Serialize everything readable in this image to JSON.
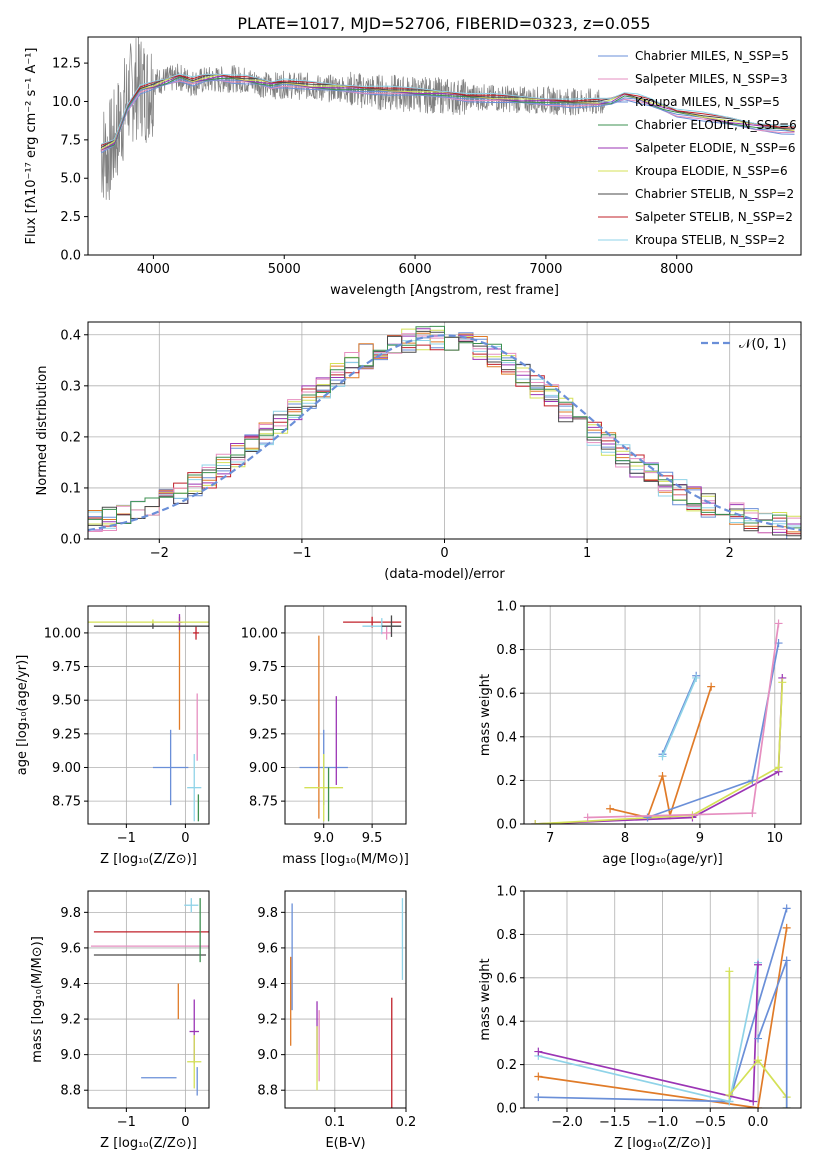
{
  "figure": {
    "title": "PLATE=1017, MJD=52706, FIBERID=0323, z=0.055"
  },
  "colors": {
    "data": "#808080",
    "series": [
      "#6a8fd8",
      "#e68fc0",
      "#6a8fd8",
      "#3c9050",
      "#9b35b5",
      "#d4e157",
      "#4a4a4a",
      "#c0202a",
      "#8fd3e8"
    ],
    "minor": [
      "#6a8fd8",
      "#e07b28",
      "#9b35b5",
      "#d4e157",
      "#c0202a",
      "#8fd3e8",
      "#e68fc0",
      "#4a4a4a",
      "#3c9050"
    ]
  },
  "chart_data": [
    {
      "id": "spectrum",
      "type": "line",
      "title": "PLATE=1017, MJD=52706, FIBERID=0323, z=0.055",
      "xlabel": "wavelength [Angstrom, rest frame]",
      "ylabel": "Flux [fλ10⁻¹⁷ erg cm⁻² s⁻¹ A⁻¹]",
      "xlim": [
        3500,
        8950
      ],
      "ylim": [
        0,
        14.2
      ],
      "xticks": [
        4000,
        5000,
        6000,
        7000,
        8000
      ],
      "xtick_labels": [
        "4000",
        "5000",
        "6000",
        "7000",
        "8000"
      ],
      "yticks": [
        0.0,
        2.5,
        5.0,
        7.5,
        10.0,
        12.5
      ],
      "ytick_labels": [
        "0.0",
        "2.5",
        "5.0",
        "7.5",
        "10.0",
        "12.5"
      ],
      "grid": false,
      "legend_position": "top-right",
      "data_series": {
        "x": [
          3600,
          3650,
          3700,
          3750,
          3800,
          3850,
          3900,
          3950,
          4000,
          4100,
          4200,
          4300,
          4400,
          4500,
          4600,
          4700,
          4800,
          4900,
          5000,
          5100,
          5200,
          5300,
          5400,
          5500,
          5600,
          5700,
          5800,
          5900,
          6000,
          6100,
          6200,
          6300,
          6400,
          6500,
          6600,
          6700,
          6800,
          6900,
          7000,
          7100,
          7200,
          7300,
          7400,
          7450
        ],
        "y": [
          6.8,
          6.5,
          7.4,
          8.8,
          10.2,
          10.8,
          11.2,
          10.6,
          11.3,
          11.4,
          11.6,
          11.2,
          11.4,
          11.4,
          11.5,
          11.4,
          11.2,
          11.0,
          11.1,
          11.0,
          11.0,
          10.8,
          10.9,
          10.8,
          10.7,
          10.6,
          10.6,
          10.5,
          10.5,
          10.4,
          10.4,
          10.3,
          10.3,
          10.3,
          10.2,
          10.2,
          10.1,
          10.1,
          10.1,
          10.0,
          10.0,
          10.0,
          9.9,
          9.9
        ]
      },
      "model_x": [
        3600,
        3700,
        3800,
        3900,
        4000,
        4100,
        4200,
        4300,
        4400,
        4500,
        4600,
        4700,
        4800,
        4900,
        5000,
        5200,
        5400,
        5600,
        5800,
        6000,
        6200,
        6400,
        6600,
        6800,
        7000,
        7200,
        7400,
        7500,
        7600,
        7700,
        7800,
        7900,
        8000,
        8200,
        8400,
        8600,
        8800,
        8900
      ],
      "model_y": [
        6.9,
        7.3,
        9.6,
        10.8,
        11.0,
        11.3,
        11.6,
        11.3,
        11.5,
        11.6,
        11.5,
        11.4,
        11.3,
        11.1,
        11.2,
        11.0,
        10.9,
        10.8,
        10.7,
        10.6,
        10.5,
        10.3,
        10.2,
        10.1,
        10.0,
        9.9,
        9.9,
        10.0,
        10.4,
        10.2,
        9.9,
        9.6,
        9.3,
        9.0,
        8.7,
        8.4,
        8.2,
        8.1
      ],
      "series": [
        {
          "name": "Chabrier MILES, N_SSP=5"
        },
        {
          "name": "Salpeter MILES, N_SSP=3"
        },
        {
          "name": "Kroupa MILES, N_SSP=5"
        },
        {
          "name": "Chabrier ELODIE, N_SSP=6"
        },
        {
          "name": "Salpeter ELODIE, N_SSP=6"
        },
        {
          "name": "Kroupa ELODIE, N_SSP=6"
        },
        {
          "name": "Chabrier STELIB, N_SSP=2"
        },
        {
          "name": "Salpeter STELIB, N_SSP=2"
        },
        {
          "name": "Kroupa STELIB, N_SSP=2"
        }
      ]
    },
    {
      "id": "residuals",
      "type": "line",
      "xlabel": "(data-model)/error",
      "ylabel": "Normed distribution",
      "xlim": [
        -2.5,
        2.5
      ],
      "ylim": [
        0,
        0.425
      ],
      "xticks": [
        -2,
        -1,
        0,
        1,
        2
      ],
      "xtick_labels": [
        "−2",
        "−1",
        "0",
        "1",
        "2"
      ],
      "yticks": [
        0.0,
        0.1,
        0.2,
        0.3,
        0.4
      ],
      "ytick_labels": [
        "0.0",
        "0.1",
        "0.2",
        "0.3",
        "0.4"
      ],
      "grid": true,
      "legend_position": "top-right",
      "legend_label": "𝒩(0, 1)",
      "gaussian": {
        "mean": 0,
        "sigma": 1
      }
    },
    {
      "id": "age-vs-Z",
      "type": "scatter",
      "xlabel": "Z [log₁₀(Z/Z⊙)]",
      "ylabel": "age  [log₁₀(age/yr)]",
      "xlim": [
        -1.65,
        0.4
      ],
      "ylim": [
        8.58,
        10.2
      ],
      "xticks": [
        -1,
        0
      ],
      "xtick_labels": [
        "−1",
        "0"
      ],
      "yticks": [
        8.75,
        9.0,
        9.25,
        9.5,
        9.75,
        10.0
      ],
      "ytick_labels": [
        "8.75",
        "9.00",
        "9.25",
        "9.50",
        "9.75",
        "10.00"
      ],
      "grid": true,
      "points": [
        {
          "x": -0.25,
          "y": 9.0,
          "xerr": 0.3,
          "yerr": 0.28
        },
        {
          "x": -0.1,
          "y": 9.7,
          "xerr": 0.0,
          "yerr": 0.42
        },
        {
          "x": -0.1,
          "y": 10.08,
          "xerr": 0.05,
          "yerr": 0.06
        },
        {
          "x": -0.55,
          "y": 10.08,
          "xerr": 1.1,
          "yerr": 0.02
        },
        {
          "x": 0.18,
          "y": 10.0,
          "xerr": 0.05,
          "yerr": 0.05
        },
        {
          "x": 0.15,
          "y": 8.85,
          "xerr": 0.12,
          "yerr": 0.25
        },
        {
          "x": 0.2,
          "y": 9.3,
          "xerr": 0.0,
          "yerr": 0.25
        },
        {
          "x": -0.55,
          "y": 10.05,
          "xerr": 1.0,
          "yerr": 0.02
        },
        {
          "x": 0.22,
          "y": 8.7,
          "xerr": 0.0,
          "yerr": 0.1
        }
      ]
    },
    {
      "id": "age-vs-mass",
      "type": "scatter",
      "xlabel": "mass [log₁₀(M/M⊙)]",
      "ylabel": "",
      "xlim": [
        8.6,
        9.85
      ],
      "ylim": [
        8.58,
        10.2
      ],
      "xticks": [
        9.0,
        9.5
      ],
      "xtick_labels": [
        "9.0",
        "9.5"
      ],
      "yticks": [
        8.75,
        9.0,
        9.25,
        9.5,
        9.75,
        10.0
      ],
      "ytick_labels": [
        "8.75",
        "9.00",
        "9.25",
        "9.50",
        "9.75",
        "10.00"
      ],
      "grid": true,
      "points": [
        {
          "x": 9.0,
          "y": 9.0,
          "xerr": 0.25,
          "yerr": 0.28
        },
        {
          "x": 8.95,
          "y": 9.3,
          "xerr": 0.0,
          "yerr": 0.68
        },
        {
          "x": 9.13,
          "y": 9.2,
          "xerr": 0.0,
          "yerr": 0.33
        },
        {
          "x": 9.0,
          "y": 8.85,
          "xerr": 0.2,
          "yerr": 0.25
        },
        {
          "x": 9.5,
          "y": 10.08,
          "xerr": 0.3,
          "yerr": 0.04
        },
        {
          "x": 9.6,
          "y": 10.05,
          "xerr": 0.2,
          "yerr": 0.06
        },
        {
          "x": 9.65,
          "y": 10.0,
          "xerr": 0.05,
          "yerr": 0.05
        },
        {
          "x": 9.7,
          "y": 10.05,
          "xerr": 0.1,
          "yerr": 0.08
        },
        {
          "x": 9.05,
          "y": 8.8,
          "xerr": 0.0,
          "yerr": 0.2
        }
      ]
    },
    {
      "id": "weight-vs-age",
      "type": "line",
      "xlabel": "age  [log₁₀(age/yr)]",
      "ylabel": "mass weight",
      "xlim": [
        6.65,
        10.35
      ],
      "ylim": [
        0,
        1.0
      ],
      "xticks": [
        7,
        8,
        9,
        10
      ],
      "xtick_labels": [
        "7",
        "8",
        "9",
        "10"
      ],
      "yticks": [
        0.0,
        0.2,
        0.4,
        0.6,
        0.8,
        1.0
      ],
      "ytick_labels": [
        "0.0",
        "0.2",
        "0.4",
        "0.6",
        "0.8",
        "1.0"
      ],
      "grid": true,
      "series": [
        {
          "x": [
            7.8,
            8.3,
            8.5,
            8.6,
            9.15
          ],
          "y": [
            0.07,
            0.03,
            0.22,
            0.04,
            0.63
          ]
        },
        {
          "x": [
            8.5,
            8.95
          ],
          "y": [
            0.32,
            0.68
          ]
        },
        {
          "x": [
            8.5,
            8.95
          ],
          "y": [
            0.31,
            0.67
          ]
        },
        {
          "x": [
            6.8,
            8.9,
            10.05,
            10.1
          ],
          "y": [
            0.0,
            0.03,
            0.24,
            0.67
          ]
        },
        {
          "x": [
            6.8,
            8.9,
            10.05,
            10.1
          ],
          "y": [
            0.0,
            0.04,
            0.26,
            0.65
          ]
        },
        {
          "x": [
            8.3,
            9.7,
            10.05
          ],
          "y": [
            0.03,
            0.2,
            0.83
          ]
        },
        {
          "x": [
            7.5,
            9.7,
            10.05
          ],
          "y": [
            0.03,
            0.05,
            0.92
          ]
        }
      ]
    },
    {
      "id": "mass-vs-Z",
      "type": "scatter",
      "xlabel": "Z [log₁₀(Z/Z⊙)]",
      "ylabel": "mass [log₁₀(M/M⊙)]",
      "xlim": [
        -1.65,
        0.4
      ],
      "ylim": [
        8.7,
        9.92
      ],
      "xticks": [
        -1,
        0
      ],
      "xtick_labels": [
        "−1",
        "0"
      ],
      "yticks": [
        8.8,
        9.0,
        9.2,
        9.4,
        9.6,
        9.8
      ],
      "ytick_labels": [
        "8.8",
        "9.0",
        "9.2",
        "9.4",
        "9.6",
        "9.8"
      ],
      "grid": true,
      "points": [
        {
          "x": -0.45,
          "y": 8.87,
          "xerr": 0.3,
          "yerr": 0.0
        },
        {
          "x": -0.12,
          "y": 9.3,
          "xerr": 0.0,
          "yerr": 0.1
        },
        {
          "x": 0.15,
          "y": 9.13,
          "xerr": 0.08,
          "yerr": 0.18
        },
        {
          "x": 0.15,
          "y": 8.96,
          "xerr": 0.12,
          "yerr": 0.15
        },
        {
          "x": -0.55,
          "y": 9.69,
          "xerr": 1.0,
          "yerr": 0.0
        },
        {
          "x": 0.1,
          "y": 9.84,
          "xerr": 0.12,
          "yerr": 0.04
        },
        {
          "x": -0.6,
          "y": 9.61,
          "xerr": 1.0,
          "yerr": 0.0
        },
        {
          "x": -0.6,
          "y": 9.56,
          "xerr": 0.95,
          "yerr": 0.0
        },
        {
          "x": 0.25,
          "y": 9.7,
          "xerr": 0.0,
          "yerr": 0.18
        },
        {
          "x": 0.2,
          "y": 8.85,
          "xerr": 0.0,
          "yerr": 0.08
        }
      ]
    },
    {
      "id": "mass-vs-EBV",
      "type": "scatter",
      "xlabel": "E(B-V)",
      "ylabel": "",
      "xlim": [
        0.03,
        0.2
      ],
      "ylim": [
        8.7,
        9.92
      ],
      "xticks": [
        0.1,
        0.2
      ],
      "xtick_labels": [
        "0.1",
        "0.2"
      ],
      "yticks": [
        8.8,
        9.0,
        9.2,
        9.4,
        9.6,
        9.8
      ],
      "ytick_labels": [
        "8.8",
        "9.0",
        "9.2",
        "9.4",
        "9.6",
        "9.8"
      ],
      "grid": true,
      "points": [
        {
          "x": 0.04,
          "y": 9.55,
          "xerr": 0.0,
          "yerr": 0.3
        },
        {
          "x": 0.038,
          "y": 9.3,
          "xerr": 0.0,
          "yerr": 0.25
        },
        {
          "x": 0.075,
          "y": 9.15,
          "xerr": 0.0,
          "yerr": 0.15
        },
        {
          "x": 0.075,
          "y": 8.98,
          "xerr": 0.0,
          "yerr": 0.18
        },
        {
          "x": 0.18,
          "y": 9.0,
          "xerr": 0.0,
          "yerr": 0.32
        },
        {
          "x": 0.195,
          "y": 9.65,
          "xerr": 0.0,
          "yerr": 0.23
        },
        {
          "x": 0.078,
          "y": 9.05,
          "xerr": 0.0,
          "yerr": 0.2
        }
      ]
    },
    {
      "id": "weight-vs-Z",
      "type": "line",
      "xlabel": "Z [log₁₀(Z/Z⊙)]",
      "ylabel": "mass weight",
      "xlim": [
        -2.45,
        0.45
      ],
      "ylim": [
        0,
        1.0
      ],
      "xticks": [
        -2.0,
        -1.5,
        -1.0,
        -0.5,
        0.0
      ],
      "xtick_labels": [
        "−2.0",
        "−1.5",
        "−1.0",
        "−0.5",
        "0.0"
      ],
      "yticks": [
        0.0,
        0.2,
        0.4,
        0.6,
        0.8,
        1.0
      ],
      "ytick_labels": [
        "0.0",
        "0.2",
        "0.4",
        "0.6",
        "0.8",
        "1.0"
      ],
      "grid": true,
      "series": [
        {
          "x": [
            -2.3,
            0.0,
            0.3
          ],
          "y": [
            0.145,
            0.0,
            0.83
          ]
        },
        {
          "x": [
            -2.3,
            -0.3,
            0.3
          ],
          "y": [
            0.05,
            0.03,
            0.92
          ]
        },
        {
          "x": [
            -2.3,
            -0.3,
            0.0
          ],
          "y": [
            0.24,
            0.03,
            0.67
          ]
        },
        {
          "x": [
            -2.3,
            -0.05,
            0.0
          ],
          "y": [
            0.26,
            0.03,
            0.66
          ]
        },
        {
          "x": [
            -0.3,
            -0.3,
            0.0,
            0.3,
            0.3
          ],
          "y": [
            0.63,
            0.06,
            0.22,
            0.05,
            0.0
          ]
        },
        {
          "x": [
            0.0,
            0.3,
            0.3
          ],
          "y": [
            0.32,
            0.68,
            0.0
          ]
        }
      ]
    }
  ]
}
